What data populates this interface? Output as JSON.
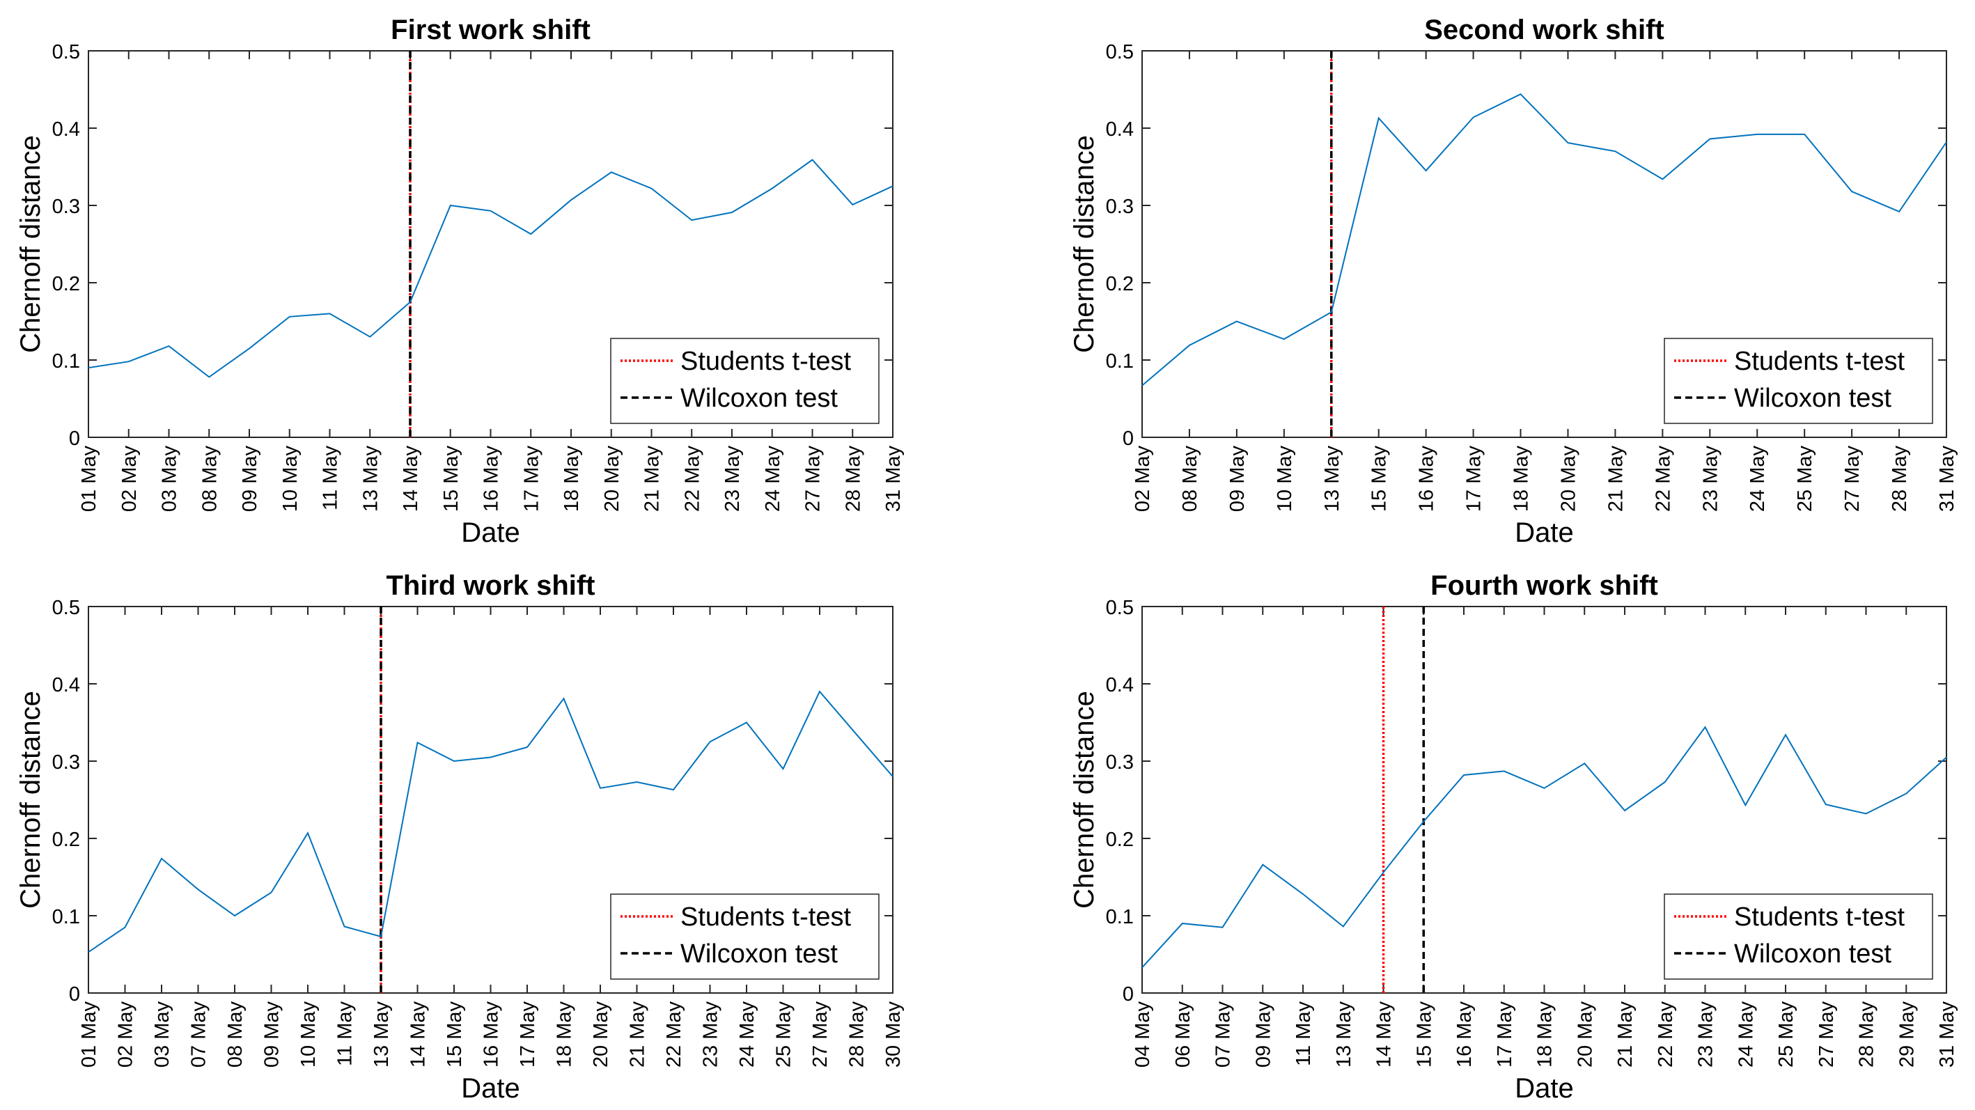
{
  "chart_data": [
    {
      "type": "line",
      "title": "First work shift",
      "xlabel": "Date",
      "ylabel": "Chernoff distance",
      "ylim": [
        0,
        0.5
      ],
      "yticks": [
        "0",
        "0.1",
        "0.2",
        "0.3",
        "0.4",
        "0.5"
      ],
      "categories": [
        "01 May",
        "02 May",
        "03 May",
        "08 May",
        "09 May",
        "10 May",
        "11 May",
        "13 May",
        "14 May",
        "15 May",
        "16 May",
        "17 May",
        "18 May",
        "20 May",
        "21 May",
        "22 May",
        "23 May",
        "24 May",
        "27 May",
        "28 May",
        "31 May"
      ],
      "series": [
        {
          "name": "Chernoff distance",
          "color": "#0072BD",
          "values": [
            0.09,
            0.098,
            0.118,
            0.078,
            0.115,
            0.156,
            0.16,
            0.13,
            0.175,
            0.3,
            0.293,
            0.263,
            0.307,
            0.343,
            0.322,
            0.281,
            0.291,
            0.322,
            0.359,
            0.301,
            0.325
          ]
        }
      ],
      "change_points": [
        {
          "name": "Students t-test",
          "category_index": 8,
          "color": "#FF0000",
          "style": "dotted"
        },
        {
          "name": "Wilcoxon test",
          "category_index": 8,
          "color": "#000000",
          "style": "dashed"
        }
      ],
      "legend": {
        "position": "bottom-right",
        "entries": [
          "Students t-test",
          "Wilcoxon test"
        ]
      }
    },
    {
      "type": "line",
      "title": "Second work shift",
      "xlabel": "Date",
      "ylabel": "Chernoff distance",
      "ylim": [
        0,
        0.5
      ],
      "yticks": [
        "0",
        "0.1",
        "0.2",
        "0.3",
        "0.4",
        "0.5"
      ],
      "categories": [
        "02 May",
        "08 May",
        "09 May",
        "10 May",
        "13 May",
        "15 May",
        "16 May",
        "17 May",
        "18 May",
        "20 May",
        "21 May",
        "22 May",
        "23 May",
        "24 May",
        "25 May",
        "27 May",
        "28 May",
        "31 May"
      ],
      "series": [
        {
          "name": "Chernoff distance",
          "color": "#0072BD",
          "values": [
            0.067,
            0.119,
            0.15,
            0.127,
            0.162,
            0.413,
            0.345,
            0.414,
            0.444,
            0.381,
            0.37,
            0.334,
            0.386,
            0.392,
            0.392,
            0.318,
            0.292,
            0.382
          ]
        }
      ],
      "change_points": [
        {
          "name": "Students t-test",
          "category_index": 4,
          "color": "#FF0000",
          "style": "dotted"
        },
        {
          "name": "Wilcoxon test",
          "category_index": 4,
          "color": "#000000",
          "style": "dashed"
        }
      ],
      "legend": {
        "position": "bottom-right",
        "entries": [
          "Students t-test",
          "Wilcoxon test"
        ]
      }
    },
    {
      "type": "line",
      "title": "Third work shift",
      "xlabel": "Date",
      "ylabel": "Chernoff distance",
      "ylim": [
        0,
        0.5
      ],
      "yticks": [
        "0",
        "0.1",
        "0.2",
        "0.3",
        "0.4",
        "0.5"
      ],
      "categories": [
        "01 May",
        "02 May",
        "03 May",
        "07 May",
        "08 May",
        "09 May",
        "10 May",
        "11 May",
        "13 May",
        "14 May",
        "15 May",
        "16 May",
        "17 May",
        "18 May",
        "20 May",
        "21 May",
        "22 May",
        "23 May",
        "24 May",
        "25 May",
        "27 May",
        "28 May",
        "30 May"
      ],
      "series": [
        {
          "name": "Chernoff distance",
          "color": "#0072BD",
          "values": [
            0.053,
            0.085,
            0.174,
            0.134,
            0.1,
            0.13,
            0.207,
            0.086,
            0.073,
            0.324,
            0.3,
            0.305,
            0.318,
            0.381,
            0.265,
            0.273,
            0.263,
            0.325,
            0.35,
            0.29,
            0.39,
            0.335,
            0.28
          ]
        }
      ],
      "change_points": [
        {
          "name": "Students t-test",
          "category_index": 8,
          "color": "#FF0000",
          "style": "dotted"
        },
        {
          "name": "Wilcoxon test",
          "category_index": 8,
          "color": "#000000",
          "style": "dashed"
        }
      ],
      "legend": {
        "position": "bottom-right",
        "entries": [
          "Students t-test",
          "Wilcoxon test"
        ]
      }
    },
    {
      "type": "line",
      "title": "Fourth work shift",
      "xlabel": "Date",
      "ylabel": "Chernoff distance",
      "ylim": [
        0,
        0.5
      ],
      "yticks": [
        "0",
        "0.1",
        "0.2",
        "0.3",
        "0.4",
        "0.5"
      ],
      "categories": [
        "04 May",
        "06 May",
        "07 May",
        "09 May",
        "11 May",
        "13 May",
        "14 May",
        "15 May",
        "16 May",
        "17 May",
        "18 May",
        "20 May",
        "21 May",
        "22 May",
        "23 May",
        "24 May",
        "25 May",
        "27 May",
        "28 May",
        "29 May",
        "31 May"
      ],
      "series": [
        {
          "name": "Chernoff distance",
          "color": "#0072BD",
          "values": [
            0.033,
            0.09,
            0.085,
            0.166,
            0.128,
            0.086,
            0.156,
            0.222,
            0.282,
            0.287,
            0.265,
            0.297,
            0.236,
            0.273,
            0.344,
            0.243,
            0.334,
            0.244,
            0.232,
            0.258,
            0.305
          ]
        }
      ],
      "change_points": [
        {
          "name": "Students t-test",
          "category_index": 6,
          "color": "#FF0000",
          "style": "dotted"
        },
        {
          "name": "Wilcoxon test",
          "category_index": 7,
          "color": "#000000",
          "style": "dashed"
        }
      ],
      "legend": {
        "position": "bottom-right",
        "entries": [
          "Students t-test",
          "Wilcoxon test"
        ]
      }
    }
  ]
}
